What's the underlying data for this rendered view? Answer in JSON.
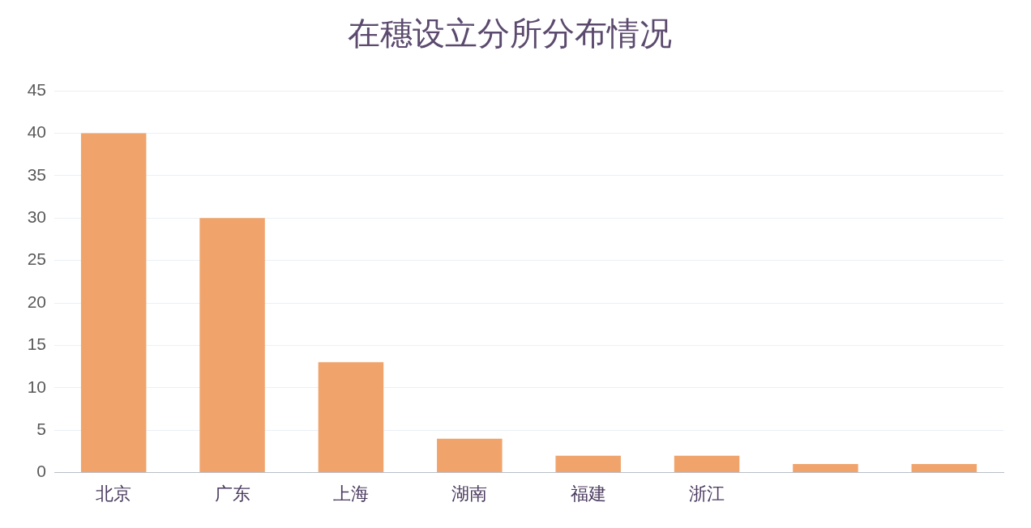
{
  "chart_data": {
    "type": "bar",
    "title": "在穗设立分所分布情况",
    "categories": [
      "北京",
      "广东",
      "上海",
      "湖南",
      "福建",
      "浙江",
      null,
      null
    ],
    "values": [
      40,
      30,
      13,
      4,
      2,
      2,
      1,
      1
    ],
    "color": "#f0a46c",
    "ylim": [
      0,
      45
    ],
    "yticks": [
      0,
      5,
      10,
      15,
      20,
      25,
      30,
      35,
      40,
      45
    ],
    "grid": "y"
  }
}
